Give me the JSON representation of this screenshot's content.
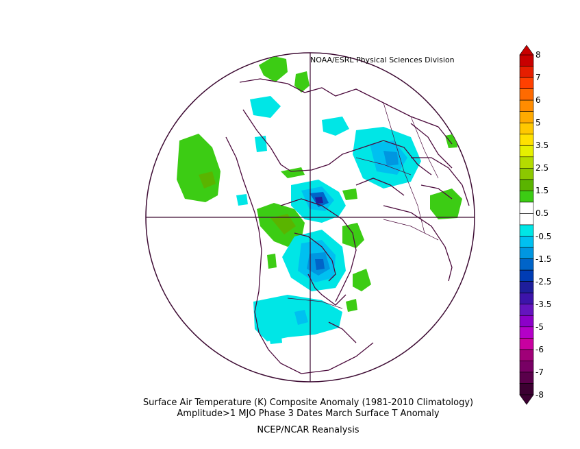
{
  "credit": "NOAA/ESRL Physical Sciences Division",
  "title_line1": "Surface Air Temperature (K) Composite Anomaly (1981-2010 Climatology)",
  "title_line2": "Amplitude>1 MJO Phase 3 Dates March Surface T Anomaly",
  "source": "NCEP/NCAR Reanalysis",
  "projection": "north-polar-stereographic",
  "colorbar": {
    "labels": [
      "8",
      "7",
      "6",
      "5",
      "3.5",
      "2.5",
      "1.5",
      "0.5",
      "-0.5",
      "-1.5",
      "-2.5",
      "-3.5",
      "-5",
      "-6",
      "-7",
      "-8"
    ],
    "colors": [
      "#c80000",
      "#e61e00",
      "#ff4000",
      "#ff6a00",
      "#ff8c00",
      "#ffaa00",
      "#ffc800",
      "#ffe100",
      "#e6f000",
      "#b4dc00",
      "#8cc800",
      "#5ab400",
      "#3ccc14",
      "#ffffff",
      "#ffffff",
      "#00e6e6",
      "#00c0f0",
      "#0096e1",
      "#0064c8",
      "#003cb4",
      "#1e1e9b",
      "#3c14aa",
      "#6414be",
      "#8c00c8",
      "#b400c8",
      "#c800a0",
      "#a00078",
      "#780064",
      "#5a004b",
      "#3c0032"
    ]
  },
  "colors": {
    "land_outline": "#4b0a3c",
    "circle_outline": "#3c0a32"
  }
}
